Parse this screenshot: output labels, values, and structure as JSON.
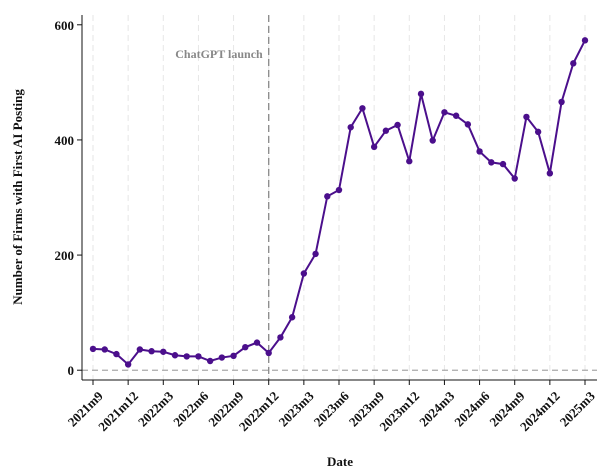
{
  "chart_data": {
    "type": "line",
    "xlabel": "Date",
    "ylabel": "Number of Firms with First AI Posting",
    "categories": [
      "2021m9",
      null,
      null,
      "2021m12",
      null,
      null,
      "2022m3",
      null,
      null,
      "2022m6",
      null,
      null,
      "2022m9",
      null,
      null,
      "2022m12",
      null,
      null,
      "2023m3",
      null,
      null,
      "2023m6",
      null,
      null,
      "2023m9",
      null,
      null,
      "2023m12",
      null,
      null,
      "2024m3",
      null,
      null,
      "2024m6",
      null,
      null,
      "2024m9",
      null,
      null,
      "2024m12",
      null,
      null,
      "2025m3"
    ],
    "series": [
      {
        "name": "Firms",
        "color": "#4b0f8c",
        "values": [
          37,
          36,
          28,
          10,
          36,
          33,
          32,
          26,
          24,
          24,
          16,
          22,
          25,
          40,
          48,
          30,
          57,
          92,
          168,
          202,
          302,
          313,
          422,
          455,
          388,
          416,
          426,
          363,
          480,
          399,
          448,
          442,
          427,
          380,
          361,
          358,
          333,
          440,
          414,
          342,
          466,
          533,
          573
        ]
      }
    ],
    "ylim": [
      -17,
      617
    ],
    "yticks": [
      0,
      200,
      400,
      600
    ],
    "grid": true,
    "annotation": {
      "label": "ChatGPT launch",
      "x": "2022m12"
    }
  }
}
